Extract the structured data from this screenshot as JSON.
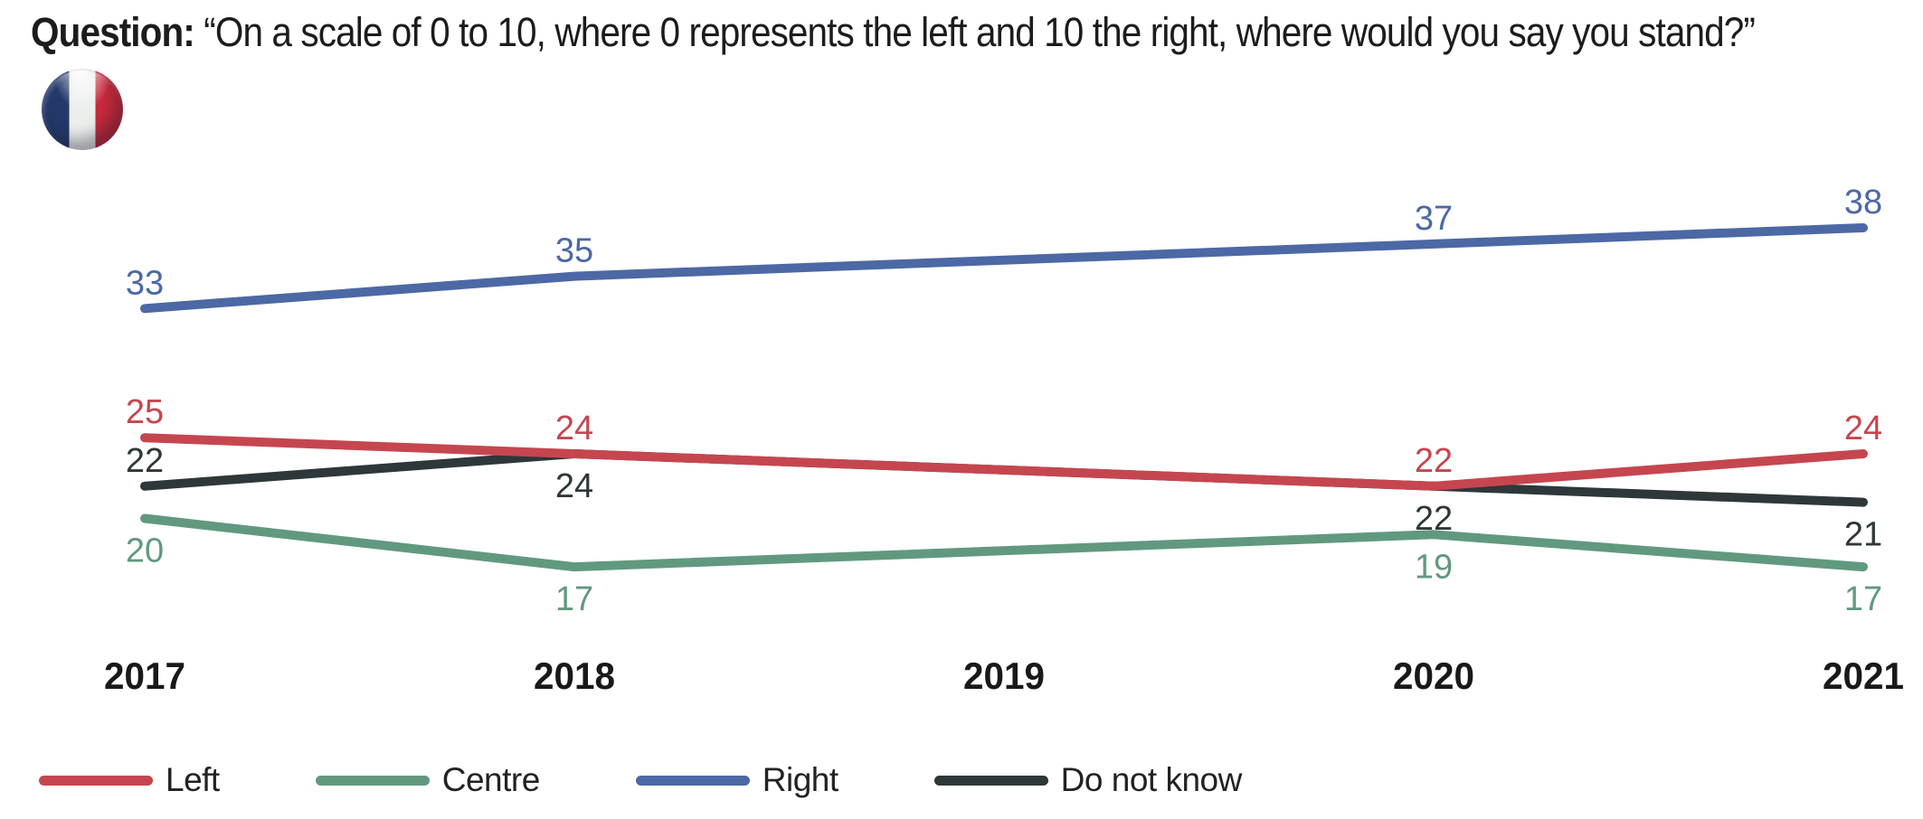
{
  "header": {
    "question_label": "Question:",
    "question_text": "“On a scale of 0 to 10, where 0 represents the left and 10 the right, where would you say you stand?”",
    "flag_icon": "france-flag-icon"
  },
  "chart_data": {
    "type": "line",
    "title": "",
    "xlabel": "",
    "ylabel": "",
    "x": [
      "2017",
      "2018",
      "2019",
      "2020",
      "2021"
    ],
    "series": [
      {
        "name": "Left",
        "color": "#c5464f",
        "values": [
          25,
          24,
          null,
          22,
          24
        ],
        "label_side": [
          "above",
          "above",
          null,
          "above",
          "above"
        ]
      },
      {
        "name": "Centre",
        "color": "#61997f",
        "values": [
          20,
          17,
          null,
          19,
          17
        ],
        "label_side": [
          "below",
          "below",
          null,
          "below",
          "below"
        ]
      },
      {
        "name": "Right",
        "color": "#4c68a5",
        "values": [
          33,
          35,
          null,
          37,
          38
        ],
        "label_side": [
          "above",
          "above",
          null,
          "above",
          "above"
        ]
      },
      {
        "name": "Do not know",
        "color": "#2e373a",
        "values": [
          22,
          24,
          null,
          22,
          21
        ],
        "label_side": [
          "above",
          "below",
          null,
          "below",
          "below"
        ]
      }
    ],
    "ylim": [
      15,
      40
    ],
    "grid": false,
    "y_axis_shown": false,
    "data_labels": true,
    "legend_position": "bottom"
  }
}
